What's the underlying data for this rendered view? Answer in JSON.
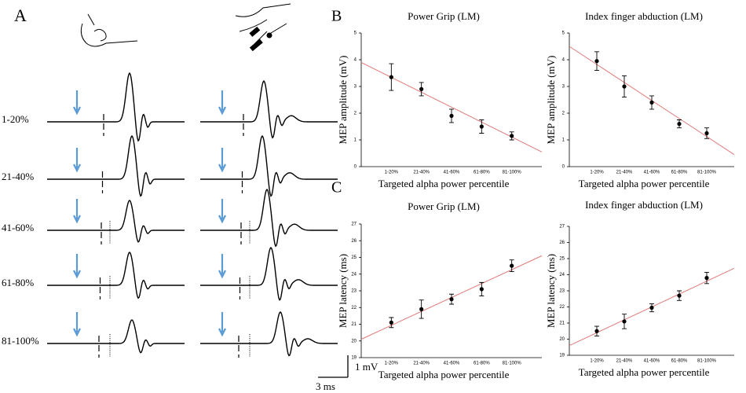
{
  "panel_labels": {
    "a": "A",
    "b": "B",
    "c": "C"
  },
  "panel_a": {
    "rows": [
      "1-20%",
      "21-40%",
      "41-60%",
      "61-80%",
      "81-100%"
    ],
    "scale_v": "1 mV",
    "scale_t": "3 ms"
  },
  "chart_data": [
    {
      "type": "errorbar",
      "title": "Power Grip (LM)",
      "x_label": "Targeted alpha power percentile",
      "y_label": "MEP amplitude (mV)",
      "categories": [
        "1-20%",
        "21-40%",
        "41-60%",
        "61-80%",
        "81-100%"
      ],
      "values": [
        3.35,
        2.9,
        1.9,
        1.5,
        1.15
      ],
      "errors": [
        0.5,
        0.25,
        0.25,
        0.25,
        0.15
      ],
      "color": "#000000",
      "trend_color": "#e07a7a",
      "trend_ends": [
        3.9,
        0.55
      ],
      "ylim": [
        0,
        5
      ],
      "yticks": [
        0,
        1,
        2,
        3,
        4,
        5
      ]
    },
    {
      "type": "errorbar",
      "title": "Index finger abduction (LM)",
      "x_label": "Targeted alpha power percentile",
      "y_label": "MEP amplitude (mV)",
      "categories": [
        "1-20%",
        "21-40%",
        "41-60%",
        "61-80%",
        "81-100%"
      ],
      "values": [
        3.95,
        3.0,
        2.4,
        1.6,
        1.25
      ],
      "errors": [
        0.35,
        0.4,
        0.25,
        0.15,
        0.2
      ],
      "color": "#000000",
      "trend_color": "#e07a7a",
      "trend_ends": [
        4.5,
        0.45
      ],
      "ylim": [
        0,
        5
      ],
      "yticks": [
        0,
        1,
        2,
        3,
        4,
        5
      ]
    },
    {
      "type": "errorbar",
      "title": "Power Grip (LM)",
      "x_label": "Targeted alpha power percentile",
      "y_label": "MEP latency (ms)",
      "categories": [
        "1-20%",
        "21-40%",
        "41-60%",
        "61-80%",
        "81-100%"
      ],
      "values": [
        21.1,
        21.9,
        22.5,
        23.1,
        24.5
      ],
      "errors": [
        0.3,
        0.55,
        0.3,
        0.4,
        0.35
      ],
      "color": "#000000",
      "trend_color": "#e07a7a",
      "trend_ends": [
        20.1,
        25.1
      ],
      "ylim": [
        19,
        27
      ],
      "yticks": [
        19,
        20,
        21,
        22,
        23,
        24,
        25,
        26,
        27
      ]
    },
    {
      "type": "errorbar",
      "title": "Index finger abduction (LM)",
      "x_label": "Targeted alpha power percentile",
      "y_label": "MEP latency (ms)",
      "categories": [
        "1-20%",
        "21-40%",
        "41-60%",
        "61-80%",
        "81-100%"
      ],
      "values": [
        20.5,
        21.1,
        21.95,
        22.7,
        23.8
      ],
      "errors": [
        0.3,
        0.45,
        0.25,
        0.3,
        0.35
      ],
      "color": "#000000",
      "trend_color": "#e07a7a",
      "trend_ends": [
        19.6,
        24.4
      ],
      "ylim": [
        19,
        27
      ],
      "yticks": [
        19,
        20,
        21,
        22,
        23,
        24,
        25,
        26,
        27
      ]
    }
  ]
}
